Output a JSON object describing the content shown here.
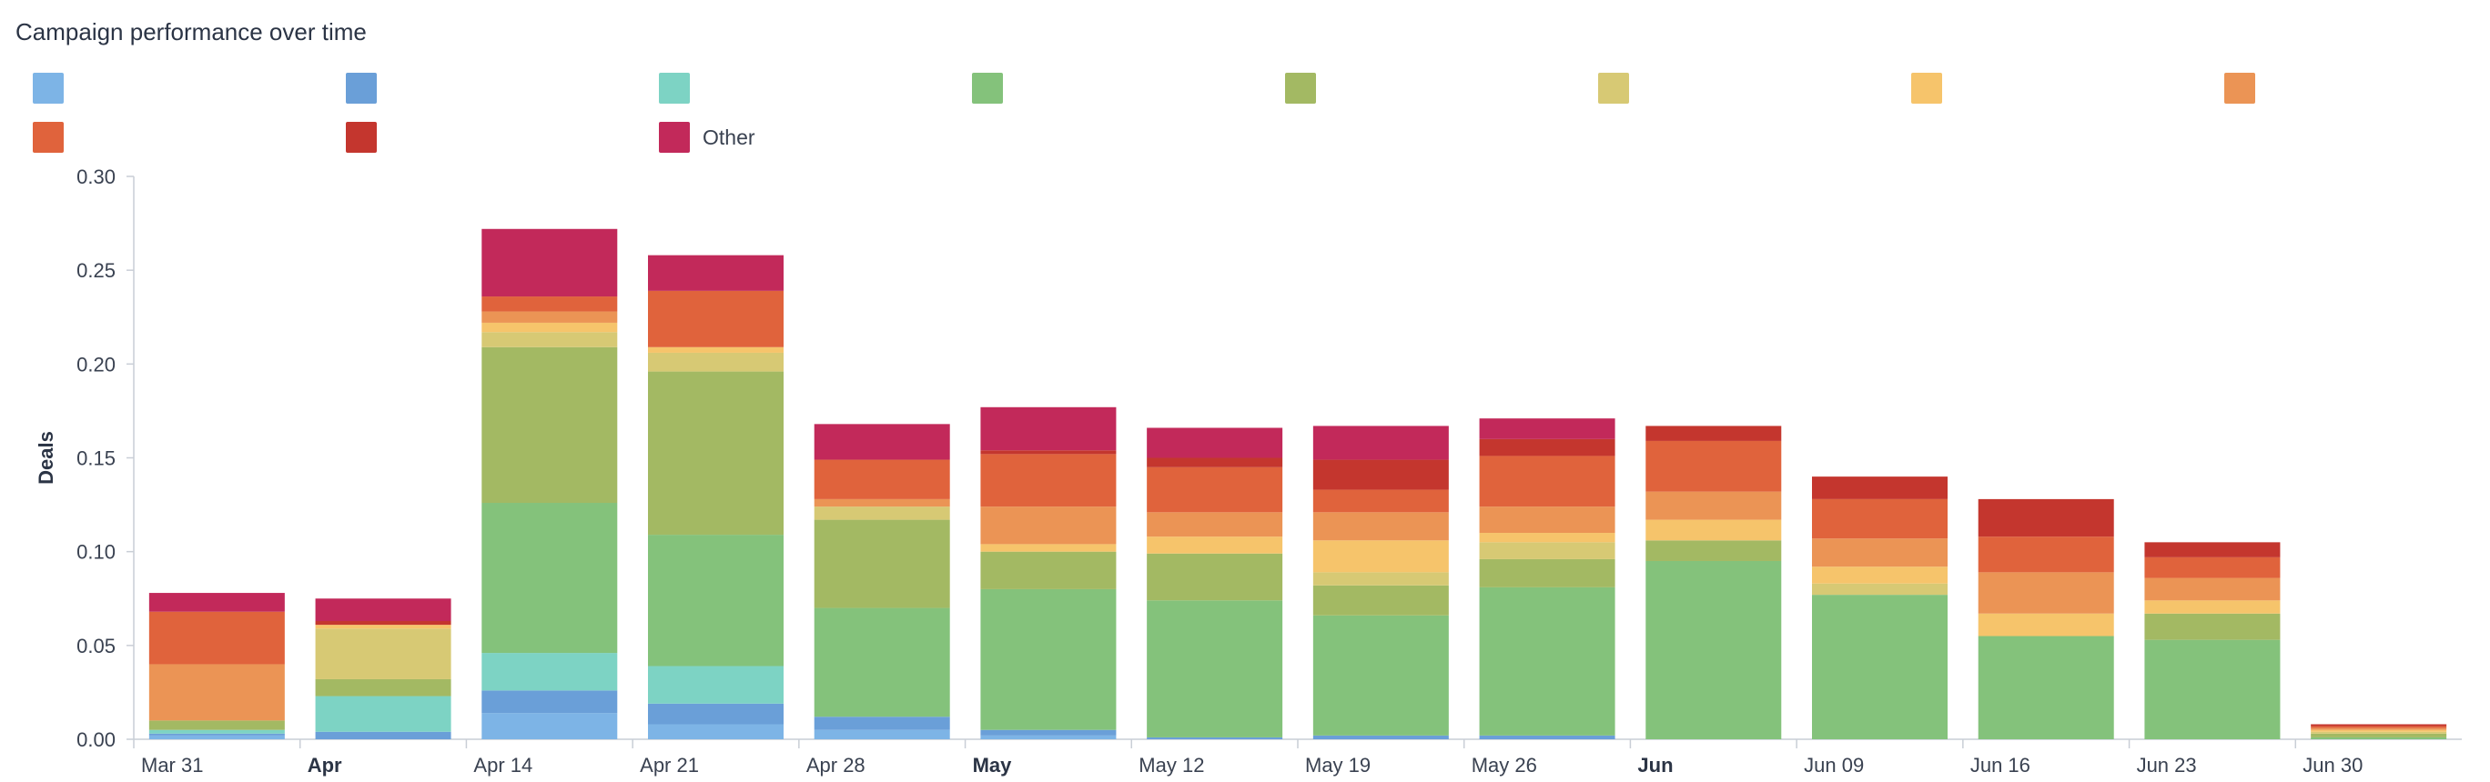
{
  "chart_data": {
    "type": "bar",
    "stacked": true,
    "title": "Campaign performance over time",
    "ylabel": "Deals",
    "xlabel": "",
    "ylim": [
      0,
      0.3
    ],
    "yticks": [
      "0.00",
      "0.05",
      "0.10",
      "0.15",
      "0.20",
      "0.25",
      "0.30"
    ],
    "ytick_values": [
      0,
      0.05,
      0.1,
      0.15,
      0.2,
      0.25,
      0.3
    ],
    "grid": false,
    "legend": "top",
    "categories": [
      "Mar 31",
      "Apr",
      "Apr 14",
      "Apr 21",
      "Apr 28",
      "May",
      "May 12",
      "May 19",
      "May 26",
      "Jun",
      "Jun 09",
      "Jun 16",
      "Jun 23",
      "Jun 30"
    ],
    "bold_categories": [
      "Apr",
      "May",
      "Jun"
    ],
    "series": [
      {
        "color": "#7db4e6",
        "values": [
          0.002,
          0.0,
          0.014,
          0.008,
          0.005,
          0.002,
          0.0,
          0.0,
          0.0,
          0.0,
          0.0,
          0.0,
          0.0,
          0.0
        ]
      },
      {
        "color": "#6a9fd8",
        "values": [
          0.001,
          0.004,
          0.012,
          0.011,
          0.007,
          0.003,
          0.001,
          0.002,
          0.002,
          0.0,
          0.0,
          0.0,
          0.0,
          0.0
        ]
      },
      {
        "color": "#7dd3c4",
        "values": [
          0.002,
          0.019,
          0.02,
          0.02,
          0.0,
          0.0,
          0.0,
          0.0,
          0.0,
          0.0,
          0.0,
          0.0,
          0.0,
          0.0
        ]
      },
      {
        "color": "#84c27b",
        "values": [
          0.0,
          0.0,
          0.08,
          0.07,
          0.058,
          0.075,
          0.073,
          0.064,
          0.079,
          0.095,
          0.077,
          0.055,
          0.053,
          0.001
        ]
      },
      {
        "color": "#a3b963",
        "values": [
          0.005,
          0.009,
          0.083,
          0.087,
          0.047,
          0.02,
          0.025,
          0.016,
          0.015,
          0.011,
          0.0,
          0.0,
          0.014,
          0.002
        ]
      },
      {
        "color": "#d7c974",
        "values": [
          0.0,
          0.027,
          0.008,
          0.01,
          0.007,
          0.0,
          0.0,
          0.007,
          0.009,
          0.0,
          0.006,
          0.0,
          0.0,
          0.001
        ]
      },
      {
        "color": "#f6c46b",
        "values": [
          0.0,
          0.002,
          0.005,
          0.003,
          0.0,
          0.004,
          0.009,
          0.017,
          0.005,
          0.011,
          0.009,
          0.012,
          0.007,
          0.001
        ]
      },
      {
        "color": "#eb9455",
        "values": [
          0.03,
          0.0,
          0.006,
          0.0,
          0.004,
          0.02,
          0.013,
          0.015,
          0.014,
          0.015,
          0.015,
          0.022,
          0.012,
          0.001
        ]
      },
      {
        "color": "#e0633c",
        "values": [
          0.028,
          0.0,
          0.008,
          0.03,
          0.021,
          0.028,
          0.024,
          0.012,
          0.027,
          0.027,
          0.021,
          0.019,
          0.011,
          0.001
        ]
      },
      {
        "color": "#c4362e",
        "values": [
          0.0,
          0.002,
          0.0,
          0.0,
          0.0,
          0.002,
          0.005,
          0.016,
          0.009,
          0.008,
          0.012,
          0.02,
          0.008,
          0.001
        ]
      },
      {
        "name": "Other",
        "color": "#c2295a",
        "values": [
          0.01,
          0.012,
          0.036,
          0.019,
          0.019,
          0.023,
          0.016,
          0.018,
          0.011,
          0.0,
          0.0,
          0.0,
          0.0,
          0.0
        ]
      }
    ]
  }
}
